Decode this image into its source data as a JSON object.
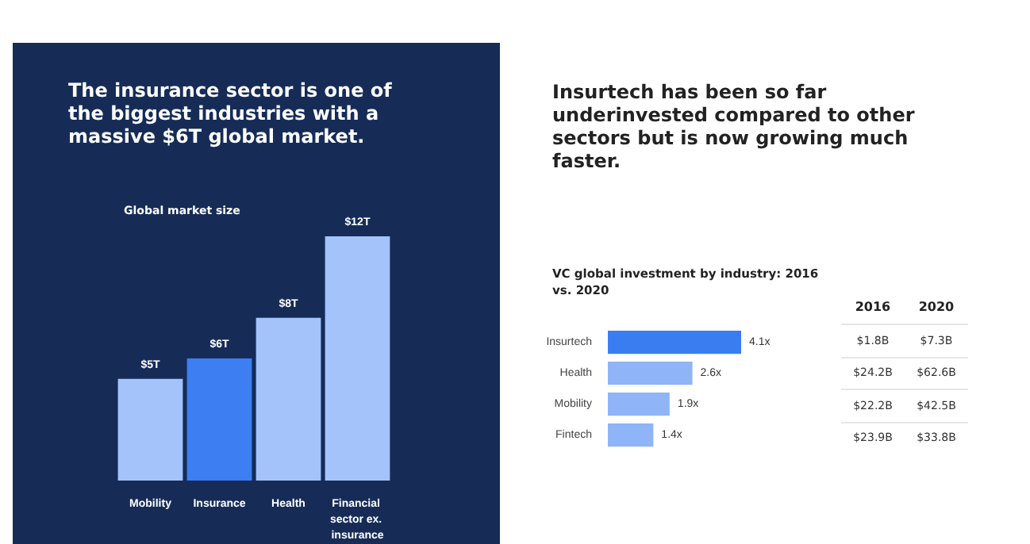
{
  "chart_data": [
    {
      "type": "bar",
      "title": "The insurance sector is one of the biggest industries with a massive $6T global market.",
      "subtitle": "Global market size",
      "categories": [
        "Mobility",
        "Insurance",
        "Health",
        "Financial sector ex. insurance"
      ],
      "values": [
        5,
        6,
        8,
        12
      ],
      "value_labels": [
        "$5T",
        "$6T",
        "$8T",
        "$12T"
      ],
      "colors": [
        "#a4c3fa",
        "#3d7ff2",
        "#a4c3fa",
        "#a4c3fa"
      ]
    },
    {
      "type": "bar",
      "orientation": "horizontal",
      "title": "Insurtech has been so far underinvested compared to other sectors but is now growing much faster.",
      "subtitle": "VC global investment by industry: 2016 vs. 2020",
      "categories": [
        "Insurtech",
        "Health",
        "Mobility",
        "Fintech"
      ],
      "values": [
        4.1,
        2.6,
        1.9,
        1.4
      ],
      "value_labels": [
        "4.1x",
        "2.6x",
        "1.9x",
        "1.4x"
      ],
      "colors": [
        "#3a7df0",
        "#8fb4f7",
        "#8fb4f7",
        "#8fb4f7"
      ]
    },
    {
      "type": "other",
      "title": "2016",
      "values": [
        1.8,
        24.2,
        22.2,
        23.9
      ],
      "value_labels": [
        "$1.8B",
        "$24.2B",
        "$22.2B",
        "$23.9B"
      ]
    },
    {
      "type": "other",
      "title": "2020",
      "values": [
        7.3,
        62.6,
        42.5,
        33.8
      ],
      "value_labels": [
        "$7.3B",
        "$62.6B",
        "$42.5B",
        "$33.8B"
      ]
    }
  ]
}
